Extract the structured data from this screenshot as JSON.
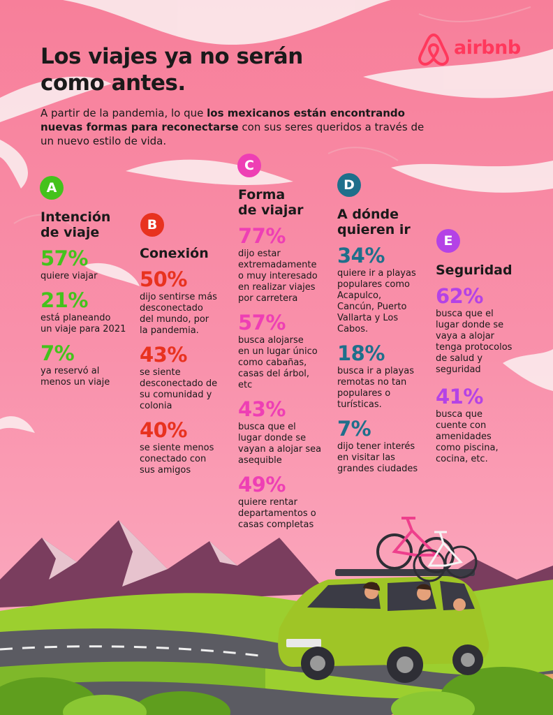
{
  "title_line1": "Los viajes ya no serán",
  "title_line2": "como antes.",
  "intro": {
    "part1": "A partir de la pandemia, lo que ",
    "bold": "los mexicanos están encontrando nuevas formas para reconectarse",
    "part2": " con sus seres queridos a través de un nuevo estilo de vida."
  },
  "logo_text": "airbnb",
  "colors": {
    "A": "#44c21c",
    "B": "#e8321f",
    "C": "#ee3fb4",
    "D": "#1f6f8b",
    "E": "#b442e6",
    "brand": "#ff385c"
  },
  "sections": {
    "A": {
      "letter": "A",
      "heading": [
        "Intención",
        "de viaje"
      ],
      "stats": [
        {
          "pct": "57%",
          "desc": [
            "quiere viajar"
          ]
        },
        {
          "pct": "21%",
          "desc": [
            "está planeando",
            "un viaje para 2021"
          ]
        },
        {
          "pct": "7%",
          "desc": [
            "ya reservó al",
            "menos un viaje"
          ]
        }
      ]
    },
    "B": {
      "letter": "B",
      "heading": [
        "Conexión"
      ],
      "stats": [
        {
          "pct": "50%",
          "desc": [
            "dijo sentirse más",
            "desconectado",
            "del mundo, por",
            "la pandemia."
          ]
        },
        {
          "pct": "43%",
          "desc": [
            "se siente",
            "desconectado de",
            "su comunidad y",
            "colonia"
          ]
        },
        {
          "pct": "40%",
          "desc": [
            "se siente menos",
            "conectado con",
            "sus amigos"
          ]
        }
      ]
    },
    "C": {
      "letter": "C",
      "heading": [
        "Forma",
        "de viajar"
      ],
      "stats": [
        {
          "pct": "77%",
          "desc": [
            "dijo estar",
            "extremadamente",
            "o muy interesado",
            "en realizar viajes",
            "por carretera"
          ]
        },
        {
          "pct": "57%",
          "desc": [
            "busca alojarse",
            "en un lugar único",
            "como cabañas,",
            "casas del árbol,",
            "etc"
          ]
        },
        {
          "pct": "43%",
          "desc": [
            "busca que el",
            "lugar donde se",
            "vayan a alojar sea",
            "asequible"
          ]
        },
        {
          "pct": "49%",
          "desc": [
            "quiere rentar",
            "departamentos o",
            "casas completas"
          ]
        }
      ]
    },
    "D": {
      "letter": "D",
      "heading": [
        "A dónde",
        "quieren ir"
      ],
      "stats": [
        {
          "pct": "34%",
          "desc": [
            "quiere ir a playas",
            "populares como",
            "Acapulco,",
            "Cancún, Puerto",
            "Vallarta y Los",
            "Cabos."
          ]
        },
        {
          "pct": "18%",
          "desc": [
            "busca ir a playas",
            "remotas no tan",
            "populares o",
            "turísticas."
          ]
        },
        {
          "pct": "7%",
          "desc": [
            "dijo tener interés",
            "en visitar las",
            "grandes ciudades"
          ]
        }
      ]
    },
    "E": {
      "letter": "E",
      "heading": [
        "Seguridad"
      ],
      "stats": [
        {
          "pct": "62%",
          "desc": [
            "busca que el",
            "lugar donde se",
            "vaya a alojar",
            "tenga protocolos",
            "de salud y",
            "seguridad"
          ]
        },
        {
          "pct": "41%",
          "desc": [
            "busca que",
            "cuente con",
            "amenidades",
            "como piscina,",
            "cocina, etc."
          ]
        }
      ]
    }
  }
}
